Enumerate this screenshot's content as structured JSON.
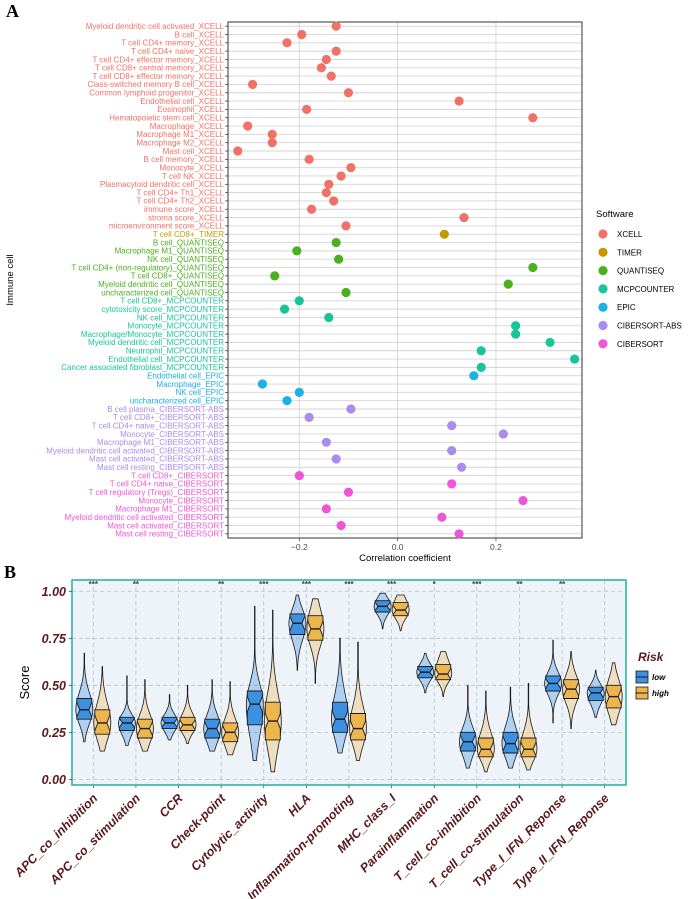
{
  "panel_a_label": "A",
  "panel_b_label": "B",
  "chart_data": [
    {
      "type": "scatter",
      "ylabel": "Immune cell",
      "xlabel": "Correlation coefficient",
      "xlim": [
        -0.345,
        0.375
      ],
      "xticks": [
        -0.2,
        0.0,
        0.2
      ],
      "xtick_labels": [
        "−0.2",
        "0.0",
        "0.2"
      ],
      "legend_title": "Software",
      "legend": [
        {
          "name": "XCELL",
          "color": "#F07167"
        },
        {
          "name": "TIMER",
          "color": "#C49A02"
        },
        {
          "name": "QUANTISEQ",
          "color": "#4CAF1E"
        },
        {
          "name": "MCPCOUNTER",
          "color": "#19C49A"
        },
        {
          "name": "EPIC",
          "color": "#1BB0E6"
        },
        {
          "name": "CIBERSORT-ABS",
          "color": "#A98CEB"
        },
        {
          "name": "CIBERSORT",
          "color": "#F056D4"
        }
      ],
      "points": [
        {
          "label": "Myeloid dendritic cell activated_XCELL",
          "software": "XCELL",
          "x": -0.125
        },
        {
          "label": "B cell_XCELL",
          "software": "XCELL",
          "x": -0.195
        },
        {
          "label": "T cell CD4+ memory_XCELL",
          "software": "XCELL",
          "x": -0.225
        },
        {
          "label": "T cell CD4+ naive_XCELL",
          "software": "XCELL",
          "x": -0.125
        },
        {
          "label": "T cell CD4+ effector memory_XCELL",
          "software": "XCELL",
          "x": -0.145
        },
        {
          "label": "T cell CD8+ central memory_XCELL",
          "software": "XCELL",
          "x": -0.155
        },
        {
          "label": "T cell CD8+ effector memory_XCELL",
          "software": "XCELL",
          "x": -0.135
        },
        {
          "label": "Class-switched memory B cell_XCELL",
          "software": "XCELL",
          "x": -0.295
        },
        {
          "label": "Common lymphoid progenitor_XCELL",
          "software": "XCELL",
          "x": -0.1
        },
        {
          "label": "Endothelial cell_XCELL",
          "software": "XCELL",
          "x": 0.125
        },
        {
          "label": "Eosinophil_XCELL",
          "software": "XCELL",
          "x": -0.185
        },
        {
          "label": "Hematopoietic stem cell_XCELL",
          "software": "XCELL",
          "x": 0.275
        },
        {
          "label": "Macrophage_XCELL",
          "software": "XCELL",
          "x": -0.305
        },
        {
          "label": "Macrophage M1_XCELL",
          "software": "XCELL",
          "x": -0.255
        },
        {
          "label": "Macrophage M2_XCELL",
          "software": "XCELL",
          "x": -0.255
        },
        {
          "label": "Mast cell_XCELL",
          "software": "XCELL",
          "x": -0.325
        },
        {
          "label": "B cell memory_XCELL",
          "software": "XCELL",
          "x": -0.18
        },
        {
          "label": "Monocyte_XCELL",
          "software": "XCELL",
          "x": -0.095
        },
        {
          "label": "T cell NK_XCELL",
          "software": "XCELL",
          "x": -0.115
        },
        {
          "label": "Plasmacytoid dendritic cell_XCELL",
          "software": "XCELL",
          "x": -0.14
        },
        {
          "label": "T cell CD4+ Th1_XCELL",
          "software": "XCELL",
          "x": -0.145
        },
        {
          "label": "T cell CD4+ Th2_XCELL",
          "software": "XCELL",
          "x": -0.13
        },
        {
          "label": "immune score_XCELL",
          "software": "XCELL",
          "x": -0.175
        },
        {
          "label": "stroma score_XCELL",
          "software": "XCELL",
          "x": 0.135
        },
        {
          "label": "microenvironment score_XCELL",
          "software": "XCELL",
          "x": -0.105
        },
        {
          "label": "T cell CD8+_TIMER",
          "software": "TIMER",
          "x": 0.095
        },
        {
          "label": "B cell_QUANTISEQ",
          "software": "QUANTISEQ",
          "x": -0.125
        },
        {
          "label": "Macrophage M1_QUANTISEQ",
          "software": "QUANTISEQ",
          "x": -0.205
        },
        {
          "label": "NK cell_QUANTISEQ",
          "software": "QUANTISEQ",
          "x": -0.12
        },
        {
          "label": "T cell CD4+ (non-regulatory)_QUANTISEQ",
          "software": "QUANTISEQ",
          "x": 0.275
        },
        {
          "label": "T cell CD8+_QUANTISEQ",
          "software": "QUANTISEQ",
          "x": -0.25
        },
        {
          "label": "Myeloid dendritic cell_QUANTISEQ",
          "software": "QUANTISEQ",
          "x": 0.225
        },
        {
          "label": "uncharacterized cell_QUANTISEQ",
          "software": "QUANTISEQ",
          "x": -0.105
        },
        {
          "label": "T cell CD8+_MCPCOUNTER",
          "software": "MCPCOUNTER",
          "x": -0.2
        },
        {
          "label": "cytotoxicity score_MCPCOUNTER",
          "software": "MCPCOUNTER",
          "x": -0.23
        },
        {
          "label": "NK cell_MCPCOUNTER",
          "software": "MCPCOUNTER",
          "x": -0.14
        },
        {
          "label": "Monocyte_MCPCOUNTER",
          "software": "MCPCOUNTER",
          "x": 0.24
        },
        {
          "label": "Macrophage/Monocyte_MCPCOUNTER",
          "software": "MCPCOUNTER",
          "x": 0.24
        },
        {
          "label": "Myeloid dendritic cell_MCPCOUNTER",
          "software": "MCPCOUNTER",
          "x": 0.31
        },
        {
          "label": "Neutrophil_MCPCOUNTER",
          "software": "MCPCOUNTER",
          "x": 0.17
        },
        {
          "label": "Endothelial cell_MCPCOUNTER",
          "software": "MCPCOUNTER",
          "x": 0.36
        },
        {
          "label": "Cancer associated fibroblast_MCPCOUNTER",
          "software": "MCPCOUNTER",
          "x": 0.17
        },
        {
          "label": "Endothelial cell_EPIC",
          "software": "EPIC",
          "x": 0.155
        },
        {
          "label": "Macrophage_EPIC",
          "software": "EPIC",
          "x": -0.275
        },
        {
          "label": "NK cell_EPIC",
          "software": "EPIC",
          "x": -0.2
        },
        {
          "label": "uncharacterized cell_EPIC",
          "software": "EPIC",
          "x": -0.225
        },
        {
          "label": "B cell plasma_CIBERSORT-ABS",
          "software": "CIBERSORT-ABS",
          "x": -0.095
        },
        {
          "label": "T cell CD8+_CIBERSORT-ABS",
          "software": "CIBERSORT-ABS",
          "x": -0.18
        },
        {
          "label": "T cell CD4+ naive_CIBERSORT-ABS",
          "software": "CIBERSORT-ABS",
          "x": 0.11
        },
        {
          "label": "Monocyte_CIBERSORT-ABS",
          "software": "CIBERSORT-ABS",
          "x": 0.215
        },
        {
          "label": "Macrophage M1_CIBERSORT-ABS",
          "software": "CIBERSORT-ABS",
          "x": -0.145
        },
        {
          "label": "Myeloid dendritic cell activated_CIBERSORT-ABS",
          "software": "CIBERSORT-ABS",
          "x": 0.11
        },
        {
          "label": "Mast cell activated_CIBERSORT-ABS",
          "software": "CIBERSORT-ABS",
          "x": -0.125
        },
        {
          "label": "Mast cell resting_CIBERSORT-ABS",
          "software": "CIBERSORT-ABS",
          "x": 0.13
        },
        {
          "label": "T cell CD8+_CIBERSORT",
          "software": "CIBERSORT",
          "x": -0.2
        },
        {
          "label": "T cell CD4+ naive_CIBERSORT",
          "software": "CIBERSORT",
          "x": 0.11
        },
        {
          "label": "T cell regulatory (Tregs)_CIBERSORT",
          "software": "CIBERSORT",
          "x": -0.1
        },
        {
          "label": "Monocyte_CIBERSORT",
          "software": "CIBERSORT",
          "x": 0.255
        },
        {
          "label": "Macrophage M1_CIBERSORT",
          "software": "CIBERSORT",
          "x": -0.145
        },
        {
          "label": "Myeloid dendritic cell activated_CIBERSORT",
          "software": "CIBERSORT",
          "x": 0.09
        },
        {
          "label": "Mast cell activated_CIBERSORT",
          "software": "CIBERSORT",
          "x": -0.115
        },
        {
          "label": "Mast cell resting_CIBERSORT",
          "software": "CIBERSORT",
          "x": 0.125
        }
      ]
    },
    {
      "type": "boxplot",
      "ylabel": "Score",
      "ylim": [
        -0.03,
        1.06
      ],
      "yticks": [
        0.0,
        0.25,
        0.5,
        0.75,
        1.0
      ],
      "ytick_labels": [
        "0.00",
        "0.25",
        "0.50",
        "0.75",
        "1.00"
      ],
      "legend_title": "Risk",
      "groups": [
        {
          "name": "low",
          "color": "#3D8FE0"
        },
        {
          "name": "high",
          "color": "#EDB54E"
        }
      ],
      "categories": [
        {
          "name": "APC_co_inhibition",
          "sig": "***",
          "low": {
            "min": 0.2,
            "q1": 0.32,
            "median": 0.37,
            "q3": 0.43,
            "max": 0.67
          },
          "high": {
            "min": 0.15,
            "q1": 0.24,
            "median": 0.3,
            "q3": 0.37,
            "max": 0.6
          }
        },
        {
          "name": "APC_co_stimulation",
          "sig": "**",
          "low": {
            "min": 0.18,
            "q1": 0.26,
            "median": 0.3,
            "q3": 0.33,
            "max": 0.55
          },
          "high": {
            "min": 0.15,
            "q1": 0.22,
            "median": 0.27,
            "q3": 0.32,
            "max": 0.53
          }
        },
        {
          "name": "CCR",
          "sig": "",
          "low": {
            "min": 0.21,
            "q1": 0.27,
            "median": 0.3,
            "q3": 0.33,
            "max": 0.45
          },
          "high": {
            "min": 0.19,
            "q1": 0.26,
            "median": 0.29,
            "q3": 0.33,
            "max": 0.5
          }
        },
        {
          "name": "Check-point",
          "sig": "**",
          "low": {
            "min": 0.15,
            "q1": 0.22,
            "median": 0.27,
            "q3": 0.32,
            "max": 0.53
          },
          "high": {
            "min": 0.13,
            "q1": 0.2,
            "median": 0.25,
            "q3": 0.3,
            "max": 0.52
          }
        },
        {
          "name": "Cytolytic_activity",
          "sig": "***",
          "low": {
            "min": 0.1,
            "q1": 0.29,
            "median": 0.4,
            "q3": 0.47,
            "max": 0.92
          },
          "high": {
            "min": 0.04,
            "q1": 0.21,
            "median": 0.31,
            "q3": 0.41,
            "max": 0.9
          }
        },
        {
          "name": "HLA",
          "sig": "***",
          "low": {
            "min": 0.58,
            "q1": 0.77,
            "median": 0.83,
            "q3": 0.88,
            "max": 0.98
          },
          "high": {
            "min": 0.51,
            "q1": 0.74,
            "median": 0.8,
            "q3": 0.87,
            "max": 0.96
          }
        },
        {
          "name": "Inflammation-promoting",
          "sig": "***",
          "low": {
            "min": 0.14,
            "q1": 0.25,
            "median": 0.32,
            "q3": 0.41,
            "max": 0.75
          },
          "high": {
            "min": 0.1,
            "q1": 0.21,
            "median": 0.27,
            "q3": 0.35,
            "max": 0.73
          }
        },
        {
          "name": "MHC_class_I",
          "sig": "***",
          "low": {
            "min": 0.8,
            "q1": 0.89,
            "median": 0.92,
            "q3": 0.95,
            "max": 0.99
          },
          "high": {
            "min": 0.79,
            "q1": 0.87,
            "median": 0.9,
            "q3": 0.94,
            "max": 0.98
          }
        },
        {
          "name": "Parainflammation",
          "sig": "*",
          "low": {
            "min": 0.46,
            "q1": 0.54,
            "median": 0.57,
            "q3": 0.6,
            "max": 0.67
          },
          "high": {
            "min": 0.44,
            "q1": 0.53,
            "median": 0.56,
            "q3": 0.61,
            "max": 0.68
          }
        },
        {
          "name": "T_cell_co-inhibition",
          "sig": "***",
          "low": {
            "min": 0.06,
            "q1": 0.15,
            "median": 0.2,
            "q3": 0.25,
            "max": 0.5
          },
          "high": {
            "min": 0.04,
            "q1": 0.12,
            "median": 0.16,
            "q3": 0.22,
            "max": 0.47
          }
        },
        {
          "name": "T_cell_co-stimulation",
          "sig": "**",
          "low": {
            "min": 0.06,
            "q1": 0.14,
            "median": 0.19,
            "q3": 0.25,
            "max": 0.49
          },
          "high": {
            "min": 0.05,
            "q1": 0.12,
            "median": 0.16,
            "q3": 0.22,
            "max": 0.51
          }
        },
        {
          "name": "Type_I_IFN_Reponse",
          "sig": "**",
          "low": {
            "min": 0.3,
            "q1": 0.47,
            "median": 0.51,
            "q3": 0.55,
            "max": 0.74
          },
          "high": {
            "min": 0.27,
            "q1": 0.43,
            "median": 0.48,
            "q3": 0.53,
            "max": 0.68
          }
        },
        {
          "name": "Type_II_IFN_Reponse",
          "sig": "",
          "low": {
            "min": 0.33,
            "q1": 0.42,
            "median": 0.46,
            "q3": 0.49,
            "max": 0.58
          },
          "high": {
            "min": 0.29,
            "q1": 0.38,
            "median": 0.44,
            "q3": 0.5,
            "max": 0.62
          }
        }
      ]
    }
  ]
}
